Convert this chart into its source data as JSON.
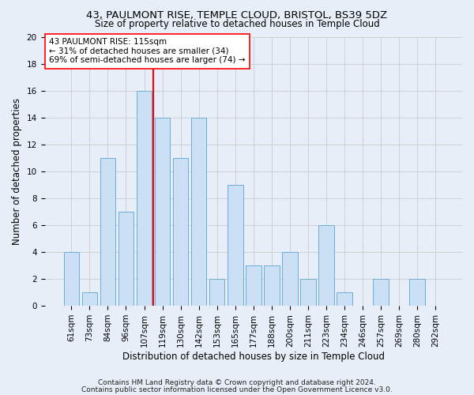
{
  "title1": "43, PAULMONT RISE, TEMPLE CLOUD, BRISTOL, BS39 5DZ",
  "title2": "Size of property relative to detached houses in Temple Cloud",
  "xlabel": "Distribution of detached houses by size in Temple Cloud",
  "ylabel": "Number of detached properties",
  "categories": [
    "61sqm",
    "73sqm",
    "84sqm",
    "96sqm",
    "107sqm",
    "119sqm",
    "130sqm",
    "142sqm",
    "153sqm",
    "165sqm",
    "177sqm",
    "188sqm",
    "200sqm",
    "211sqm",
    "223sqm",
    "234sqm",
    "246sqm",
    "257sqm",
    "269sqm",
    "280sqm",
    "292sqm"
  ],
  "values": [
    4,
    1,
    11,
    7,
    16,
    14,
    11,
    14,
    2,
    9,
    3,
    3,
    4,
    2,
    6,
    1,
    0,
    2,
    0,
    2,
    0
  ],
  "bar_color": "#cce0f5",
  "bar_edge_color": "#6aaed6",
  "grid_color": "#cccccc",
  "vline_color": "red",
  "vline_pos": 4.5,
  "annotation_text": "43 PAULMONT RISE: 115sqm\n← 31% of detached houses are smaller (34)\n69% of semi-detached houses are larger (74) →",
  "annotation_box_color": "white",
  "annotation_box_edge": "red",
  "footer1": "Contains HM Land Registry data © Crown copyright and database right 2024.",
  "footer2": "Contains public sector information licensed under the Open Government Licence v3.0.",
  "ylim": [
    0,
    20
  ],
  "yticks": [
    0,
    2,
    4,
    6,
    8,
    10,
    12,
    14,
    16,
    18,
    20
  ],
  "bg_color": "#e8eef8",
  "plot_bg_color": "#e8eef8",
  "title1_fontsize": 9.5,
  "title2_fontsize": 8.5,
  "xlabel_fontsize": 8.5,
  "ylabel_fontsize": 8.5,
  "tick_fontsize": 7.5,
  "annot_fontsize": 7.5,
  "footer_fontsize": 6.5
}
